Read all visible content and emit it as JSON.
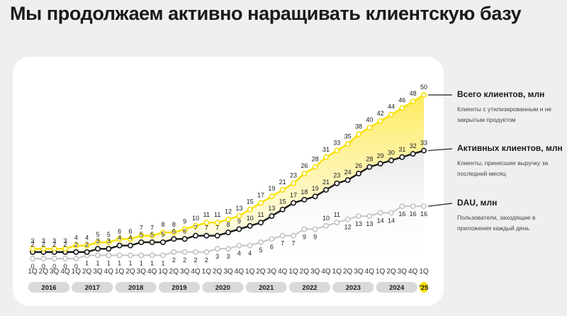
{
  "title": "Мы продолжаем активно наращивать клиентскую базу",
  "legend": [
    {
      "name": "Всего клиентов, млн",
      "desc": "Клиенты с утилизированным и не закрытым продуктом"
    },
    {
      "name": "Активных клиентов, млн",
      "desc": "Клиенты, принесшие выручку за последний месяц"
    },
    {
      "name": "DAU, млн",
      "desc": "Пользователи, заходящие в приложения каждый день"
    }
  ],
  "colors": {
    "total": "#f8e000",
    "active": "#1a1a1a",
    "dau": "#c4c4c4",
    "year_box": "#d9d9d9",
    "year_highlight": "#f8e000"
  },
  "chart_data": {
    "type": "line",
    "x": [
      "1Q",
      "2Q",
      "3Q",
      "4Q",
      "1Q",
      "2Q",
      "3Q",
      "4Q",
      "1Q",
      "2Q",
      "3Q",
      "4Q",
      "1Q",
      "2Q",
      "3Q",
      "4Q",
      "1Q",
      "2Q",
      "3Q",
      "4Q",
      "1Q",
      "2Q",
      "3Q",
      "4Q",
      "1Q",
      "2Q",
      "3Q",
      "4Q",
      "1Q",
      "2Q",
      "3Q",
      "4Q",
      "1Q",
      "2Q",
      "3Q",
      "4Q",
      "1Q"
    ],
    "years": [
      "2016",
      "2017",
      "2018",
      "2019",
      "2020",
      "2021",
      "2022",
      "2023",
      "2024",
      "'25"
    ],
    "series": [
      {
        "name": "Всего клиентов, млн",
        "key": "total",
        "values": [
          3,
          3,
          3,
          3,
          4,
          4,
          5,
          5,
          6,
          6,
          7,
          7,
          8,
          8,
          9,
          10,
          11,
          11,
          12,
          13,
          15,
          17,
          19,
          21,
          23,
          26,
          28,
          31,
          33,
          35,
          38,
          40,
          42,
          44,
          46,
          48,
          50
        ]
      },
      {
        "name": "Активных клиентов, млн",
        "key": "active",
        "values": [
          2,
          2,
          2,
          2,
          2,
          2,
          3,
          3,
          4,
          4,
          5,
          5,
          5,
          6,
          6,
          7,
          7,
          7,
          8,
          9,
          10,
          11,
          13,
          15,
          17,
          18,
          19,
          21,
          23,
          24,
          26,
          28,
          29,
          30,
          31,
          32,
          33
        ]
      },
      {
        "name": "DAU, млн",
        "key": "dau",
        "values": [
          0,
          0,
          0,
          0,
          0,
          1,
          1,
          1,
          1,
          1,
          1,
          1,
          1,
          2,
          2,
          2,
          2,
          3,
          3,
          4,
          4,
          5,
          6,
          7,
          7,
          9,
          9,
          10,
          11,
          12,
          13,
          13,
          14,
          14,
          16,
          16,
          16
        ]
      }
    ],
    "ylim": [
      0,
      50
    ]
  }
}
